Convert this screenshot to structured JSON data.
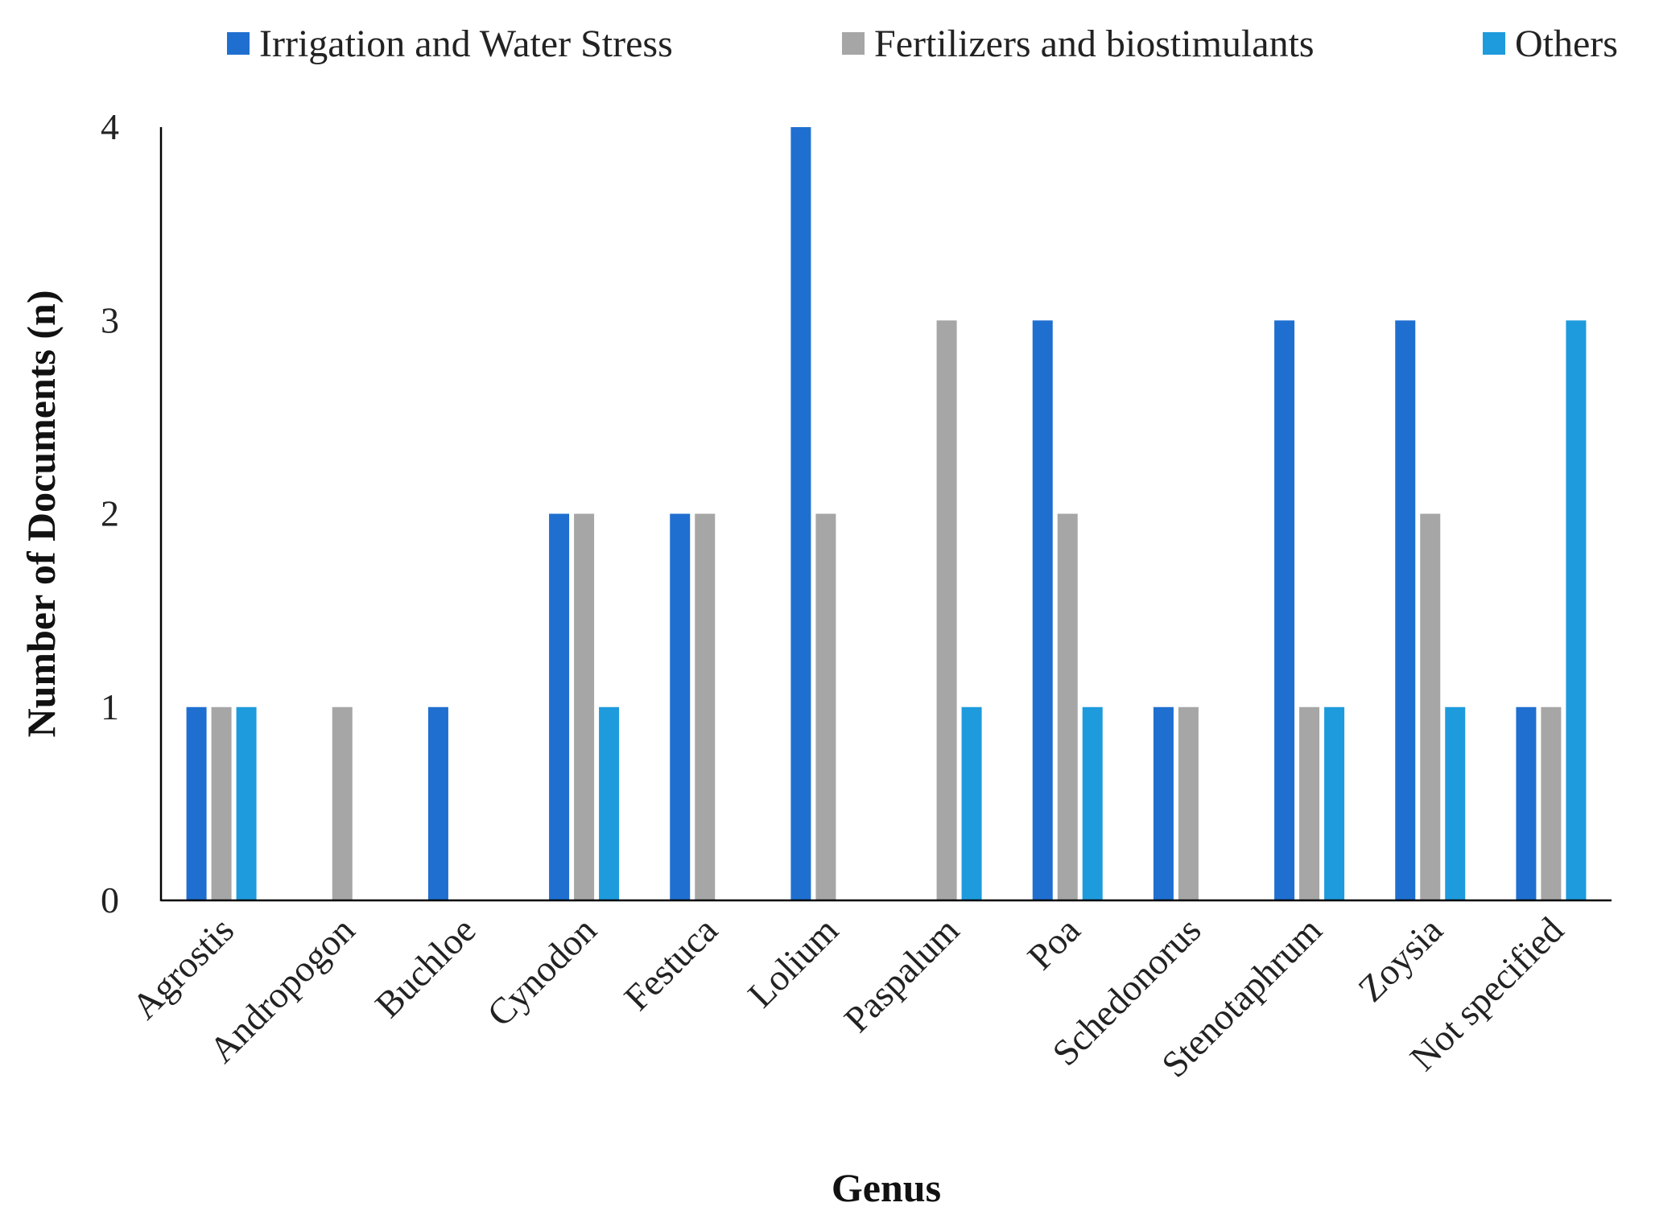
{
  "chart_data": {
    "type": "bar",
    "title": "",
    "xlabel": "Genus",
    "ylabel": "Number of Documents (n)",
    "ylim": [
      0,
      4
    ],
    "yticks": [
      0,
      1,
      2,
      3,
      4
    ],
    "grid": false,
    "legend_position": "top",
    "categories": [
      "Agrostis",
      "Andropogon",
      "Buchloe",
      "Cynodon",
      "Festuca",
      "Lolium",
      "Paspalum",
      "Poa",
      "Schedonorus",
      "Stenotaphrum",
      "Zoysia",
      "Not specified"
    ],
    "series": [
      {
        "name": "Irrigation and Water Stress",
        "color": "#1F6FD0",
        "values": [
          1,
          0,
          1,
          2,
          2,
          4,
          0,
          3,
          1,
          3,
          3,
          1
        ]
      },
      {
        "name": "Fertilizers and biostimulants",
        "color": "#A6A6A6",
        "values": [
          1,
          1,
          0,
          2,
          2,
          2,
          3,
          2,
          1,
          1,
          2,
          1
        ]
      },
      {
        "name": "Others",
        "color": "#1E9BDD",
        "values": [
          1,
          0,
          0,
          1,
          0,
          0,
          1,
          1,
          0,
          1,
          1,
          3
        ]
      }
    ]
  }
}
